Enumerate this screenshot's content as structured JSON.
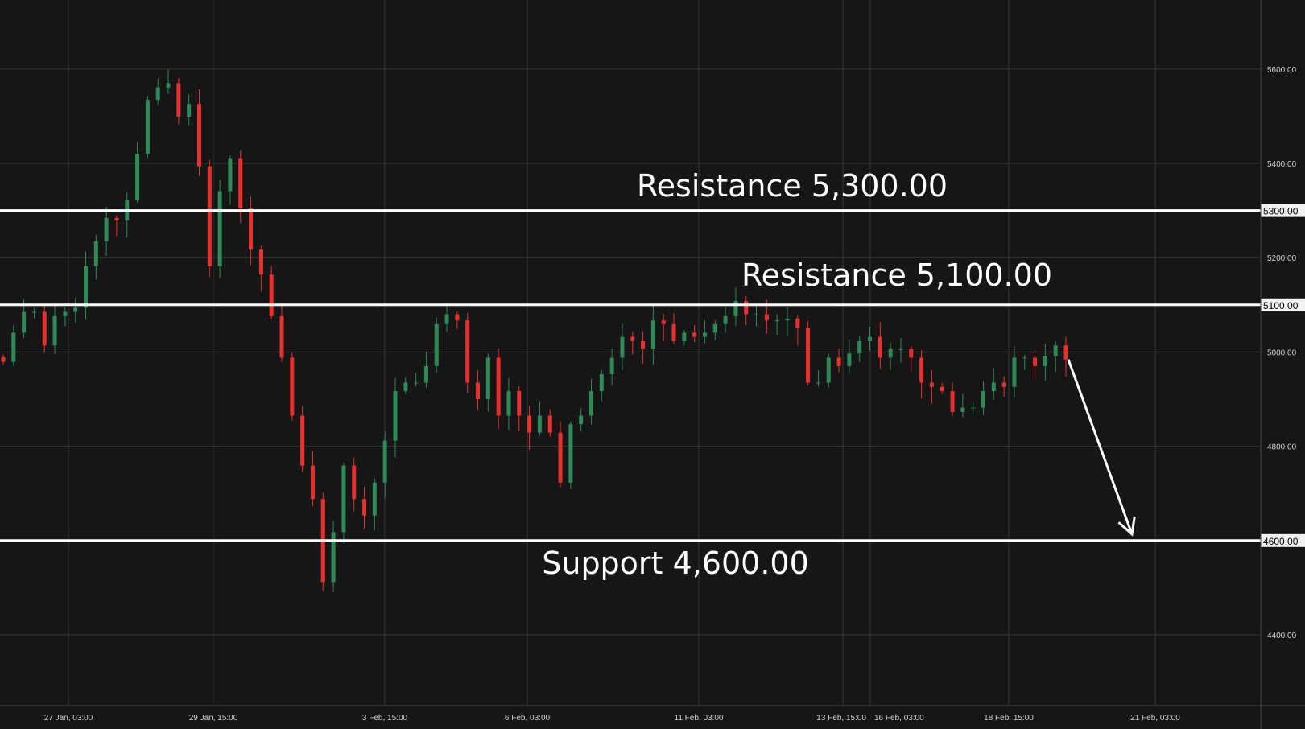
{
  "chart_data": {
    "type": "candlestick",
    "colors": {
      "background": "#161616",
      "grid": "#363636",
      "up": "#2e8b57",
      "down": "#e8312f",
      "level_line": "#ffffff",
      "arrow": "#ffffff"
    },
    "grid": true,
    "ylim": [
      4250,
      5750
    ],
    "y_ticks": [
      {
        "value": 5600,
        "label": "5600.00"
      },
      {
        "value": 5400,
        "label": "5400.00"
      },
      {
        "value": 5200,
        "label": "5200.00"
      },
      {
        "value": 5000,
        "label": "5000.00"
      },
      {
        "value": 4800,
        "label": "4800.00"
      },
      {
        "value": 4400,
        "label": "4400.00"
      }
    ],
    "x_ticks": [
      "27 Jan, 03:00",
      "29 Jan, 15:00",
      "3 Feb, 15:00",
      "6 Feb, 03:00",
      "11 Feb, 03:00",
      "13 Feb, 15:00",
      "16 Feb, 03:00",
      "18 Feb, 15:00",
      "21 Feb, 03:00"
    ],
    "closes": [
      4979,
      5041,
      5085,
      5085,
      5014,
      5076,
      5085,
      5094,
      5182,
      5235,
      5284,
      5279,
      5323,
      5420,
      5535,
      5561,
      5570,
      5499,
      5526,
      5394,
      5182,
      5341,
      5411,
      5305,
      5217,
      5164,
      5076,
      4988,
      4865,
      4759,
      4688,
      4512,
      4618,
      4759,
      4688,
      4653,
      4723,
      4812,
      4917,
      4935,
      4935,
      4970,
      5059,
      5080,
      5067,
      4935,
      4900,
      4988,
      4865,
      4917,
      4865,
      4829,
      4865,
      4829,
      4723,
      4847,
      4865,
      4917,
      4953,
      4988,
      5032,
      5023,
      5006,
      5067,
      5059,
      5023,
      5041,
      5032,
      5041,
      5059,
      5076,
      5108,
      5080,
      5080,
      5067,
      5067,
      5071,
      5050,
      4935,
      4935,
      4988,
      4970,
      4997,
      5023,
      5032,
      4988,
      5006,
      5006,
      4988,
      4935,
      4926,
      4917,
      4873,
      4882,
      4882,
      4917,
      4935,
      4926,
      4988,
      4988,
      4970,
      4991,
      5014,
      4984
    ],
    "levels": [
      {
        "value": 5300,
        "axis_label": "5300.00",
        "text": "Resistance 5,300.00"
      },
      {
        "value": 5100,
        "axis_label": "5100.00",
        "text": "Resistance 5,100.00"
      },
      {
        "value": 4600,
        "axis_label": "4600.00",
        "text": "Support 4,600.00"
      }
    ],
    "projection": {
      "from_price": 4984,
      "to_price": 4600,
      "direction": "down"
    }
  }
}
